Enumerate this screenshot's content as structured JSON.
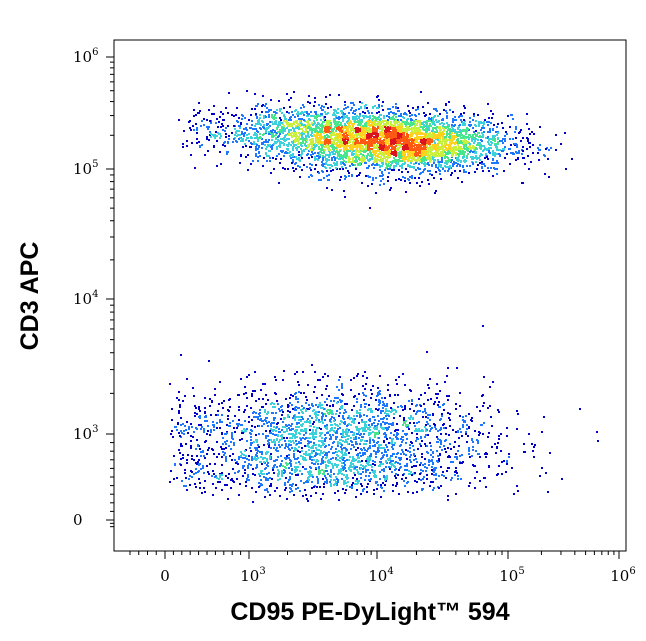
{
  "chart_data": {
    "type": "scatter",
    "subtype": "flow-cytometry-density-dot-plot",
    "title": "",
    "xlabel": "CD95 PE-DyLight™ 594",
    "ylabel": "CD3 APC",
    "x_scale": "biexponential",
    "y_scale": "biexponential",
    "xlim": [
      -400,
      1000000
    ],
    "ylim": [
      -150,
      1000000
    ],
    "x_ticks": [
      {
        "value": 0,
        "base": "0",
        "exp": ""
      },
      {
        "value": 1000,
        "base": "10",
        "exp": "3"
      },
      {
        "value": 10000,
        "base": "10",
        "exp": "4"
      },
      {
        "value": 100000,
        "base": "10",
        "exp": "5"
      },
      {
        "value": 1000000,
        "base": "10",
        "exp": "6"
      }
    ],
    "y_ticks": [
      {
        "value": 0,
        "base": "0",
        "exp": ""
      },
      {
        "value": 1000,
        "base": "10",
        "exp": "3"
      },
      {
        "value": 10000,
        "base": "10",
        "exp": "4"
      },
      {
        "value": 100000,
        "base": "10",
        "exp": "5"
      },
      {
        "value": 1000000,
        "base": "10",
        "exp": "6"
      }
    ],
    "grid": false,
    "legend": "none",
    "density_colors": [
      "#0000c8",
      "#1e78ff",
      "#3cd2dc",
      "#46e68c",
      "#c8f03c",
      "#ffd21e",
      "#ff5a14",
      "#dc141e"
    ],
    "populations": [
      {
        "x_center": 15000,
        "x_spread_log": 0.42,
        "y_center": 170000,
        "y_spread_log": 0.13,
        "count": 3200
      },
      {
        "x_center": 3500,
        "x_spread_log": 0.45,
        "y_center": 220000,
        "y_spread_log": 0.12,
        "count": 1500
      },
      {
        "x_center": 4500,
        "x_spread_log": 0.6,
        "y_center": 900,
        "y_spread_log": 0.2,
        "count": 2600
      }
    ]
  }
}
